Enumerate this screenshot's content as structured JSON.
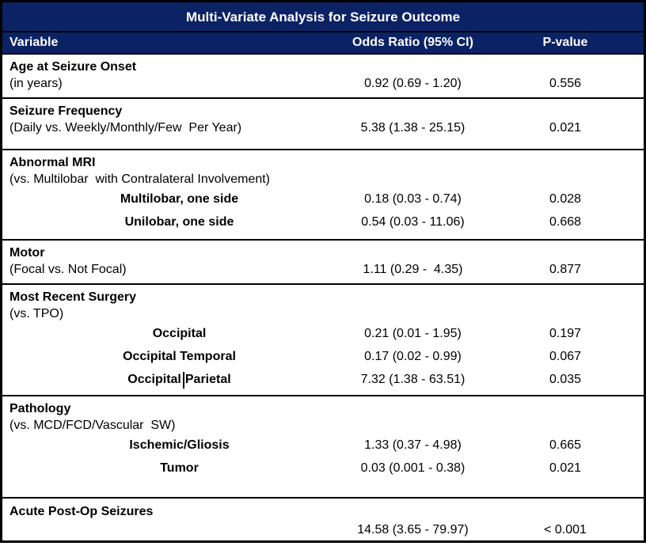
{
  "title": "Multi-Variate Analysis for Seizure Outcome",
  "columns": {
    "variable": "Variable",
    "odds_ratio": "Odds Ratio (95% CI)",
    "p_value": "P-value"
  },
  "colors": {
    "header_bg": "#0b2265",
    "header_text": "#ffffff",
    "border": "#000000",
    "body_bg": "#ffffff",
    "body_text": "#000000"
  },
  "sections": [
    {
      "id": "age-at-seizure-onset",
      "lines": [
        {
          "style": "bold",
          "label": "Age at Seizure Onset"
        },
        {
          "style": "plain",
          "label": "(in years)",
          "or": "0.92 (0.69 - 1.20)",
          "p": "0.556"
        }
      ]
    },
    {
      "id": "seizure-frequency",
      "lines": [
        {
          "style": "bold",
          "label": "Seizure Frequency"
        },
        {
          "style": "plain",
          "label": "(Daily vs. Weekly/Monthly/Few  Per Year)",
          "or": "5.38 (1.38 - 25.15)",
          "p": "0.021"
        }
      ]
    },
    {
      "id": "abnormal-mri",
      "lines": [
        {
          "style": "bold",
          "label": "Abnormal MRI"
        },
        {
          "style": "plain",
          "label": "(vs. Multilobar  with Contralateral Involvement)"
        },
        {
          "style": "sub",
          "label": "Multilobar, one side",
          "or": "0.18 (0.03 - 0.74)",
          "p": "0.028"
        },
        {
          "style": "sub",
          "label": "Unilobar, one side",
          "or": "0.54 (0.03 - 11.06)",
          "p": "0.668"
        }
      ]
    },
    {
      "id": "motor",
      "lines": [
        {
          "style": "bold",
          "label": "Motor"
        },
        {
          "style": "plain",
          "label": "(Focal vs. Not Focal)",
          "or": "1.11 (0.29 -  4.35)",
          "p": "0.877"
        }
      ]
    },
    {
      "id": "most-recent-surgery",
      "lines": [
        {
          "style": "bold",
          "label": "Most Recent Surgery"
        },
        {
          "style": "plain",
          "label": "(vs. TPO)"
        },
        {
          "style": "sub",
          "label": "Occipital",
          "or": "0.21 (0.01 - 1.95)",
          "p": "0.197"
        },
        {
          "style": "sub",
          "label": "Occipital Temporal",
          "or": "0.17 (0.02 - 0.99)",
          "p": "0.067"
        },
        {
          "style": "sub",
          "caret_split": [
            "Occipital",
            "Parietal"
          ],
          "or": "7.32 (1.38 - 63.51)",
          "p": "0.035"
        }
      ]
    },
    {
      "id": "pathology",
      "lines": [
        {
          "style": "bold",
          "label": "Pathology"
        },
        {
          "style": "plain",
          "label": "(vs. MCD/FCD/Vascular  SW)"
        },
        {
          "style": "sub",
          "label": "Ischemic/Gliosis",
          "or": "1.33 (0.37 - 4.98)",
          "p": "0.665"
        },
        {
          "style": "sub",
          "label": "Tumor",
          "or": "0.03 (0.001 - 0.38)",
          "p": "0.021"
        }
      ]
    },
    {
      "id": "acute-post-op-seizures",
      "lines": [
        {
          "style": "bold",
          "label": "Acute Post-Op Seizures"
        },
        {
          "style": "plain",
          "label": "",
          "or": "14.58 (3.65 - 79.97)",
          "p": "< 0.001"
        }
      ]
    }
  ]
}
